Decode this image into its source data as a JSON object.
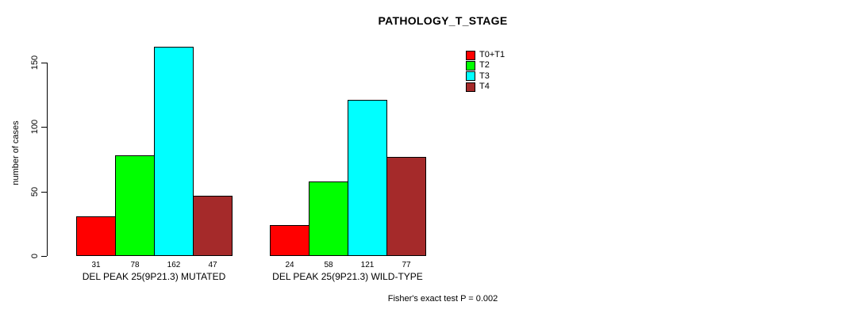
{
  "chart_data": {
    "type": "bar",
    "title": "PATHOLOGY_T_STAGE",
    "ylabel": "number of cases",
    "xlabel": "",
    "ylim": [
      0,
      150
    ],
    "yticks": [
      0,
      50,
      100,
      150
    ],
    "grid": false,
    "legend_position": "top-right",
    "categories": [
      "DEL PEAK 25(9P21.3) MUTATED",
      "DEL PEAK 25(9P21.3) WILD-TYPE"
    ],
    "series": [
      {
        "name": "T0+T1",
        "color": "#ff0000",
        "values": [
          31,
          24
        ]
      },
      {
        "name": "T2",
        "color": "#00ff00",
        "values": [
          78,
          58
        ]
      },
      {
        "name": "T3",
        "color": "#00ffff",
        "values": [
          162,
          121
        ]
      },
      {
        "name": "T4",
        "color": "#a52a2a",
        "values": [
          47,
          77
        ]
      }
    ],
    "annotation": "Fisher's exact test P = 0.002",
    "axis_color": "#000000",
    "background_color": "#ffffff"
  }
}
